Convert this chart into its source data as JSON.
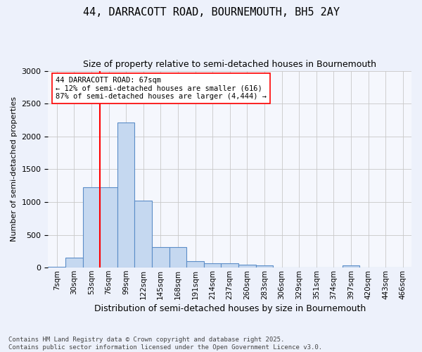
{
  "title": "44, DARRACOTT ROAD, BOURNEMOUTH, BH5 2AY",
  "subtitle": "Size of property relative to semi-detached houses in Bournemouth",
  "xlabel": "Distribution of semi-detached houses by size in Bournemouth",
  "ylabel": "Number of semi-detached properties",
  "bin_labels": [
    "7sqm",
    "30sqm",
    "53sqm",
    "76sqm",
    "99sqm",
    "122sqm",
    "145sqm",
    "168sqm",
    "191sqm",
    "214sqm",
    "237sqm",
    "260sqm",
    "283sqm",
    "306sqm",
    "329sqm",
    "351sqm",
    "374sqm",
    "397sqm",
    "420sqm",
    "443sqm",
    "466sqm"
  ],
  "bar_values": [
    15,
    150,
    1225,
    1225,
    2210,
    1020,
    310,
    310,
    100,
    65,
    65,
    45,
    35,
    0,
    0,
    0,
    0,
    30,
    0,
    0,
    0
  ],
  "bar_color": "#c5d8f0",
  "bar_edge_color": "#5b8dc8",
  "annotation_text": "44 DARRACOTT ROAD: 67sqm\n← 12% of semi-detached houses are smaller (616)\n87% of semi-detached houses are larger (4,444) →",
  "vline_color": "red",
  "ylim": [
    0,
    3000
  ],
  "yticks": [
    0,
    500,
    1000,
    1500,
    2000,
    2500,
    3000
  ],
  "footer": "Contains HM Land Registry data © Crown copyright and database right 2025.\nContains public sector information licensed under the Open Government Licence v3.0.",
  "bg_color": "#edf1fb",
  "plot_bg_color": "#f5f7fd"
}
